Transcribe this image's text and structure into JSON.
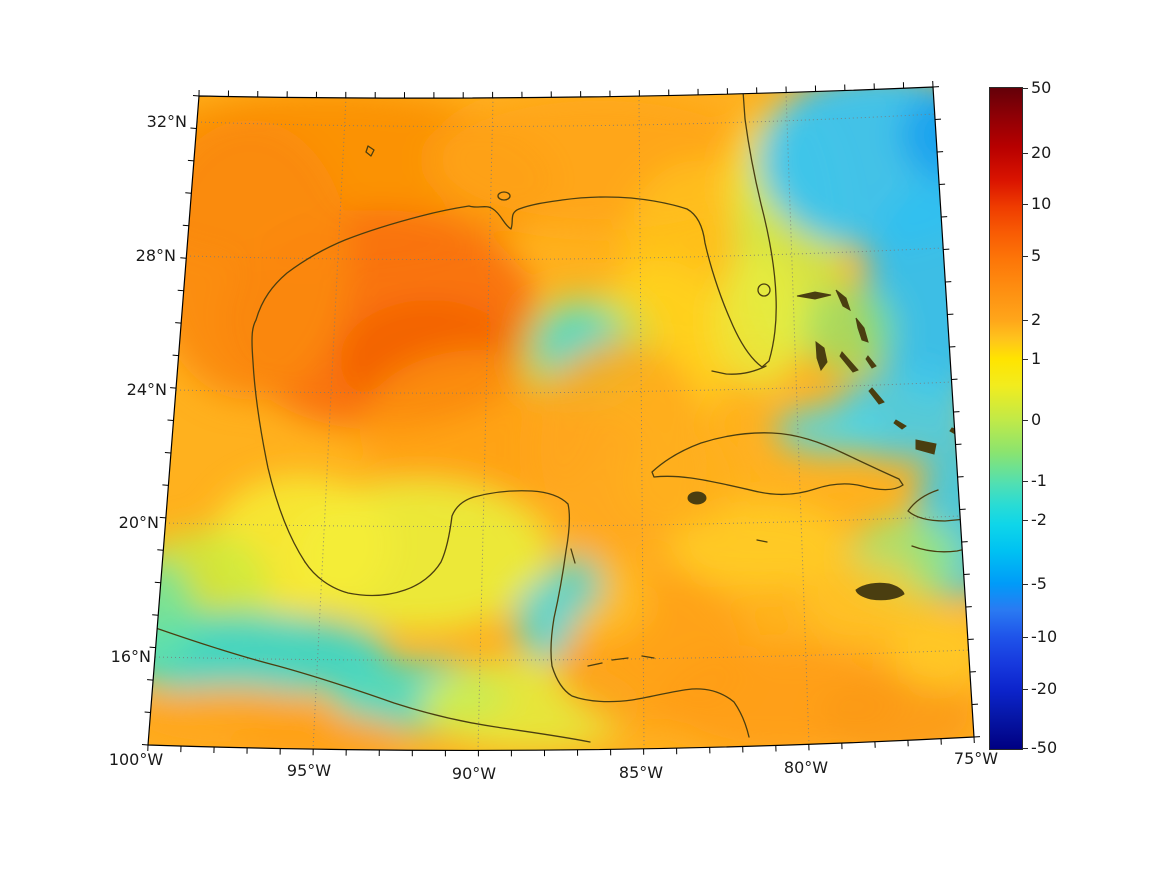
{
  "map": {
    "x_tick_labels": [
      "100°W",
      "95°W",
      "90°W",
      "85°W",
      "80°W",
      "75°W"
    ],
    "y_tick_labels": [
      "32°N",
      "28°N",
      "24°N",
      "20°N",
      "16°N"
    ]
  },
  "colorbar": {
    "tick_labels": [
      "50",
      "20",
      "10",
      "5",
      "2",
      "1",
      "0",
      "-1",
      "-2",
      "-5",
      "-10",
      "-20",
      "-50"
    ]
  },
  "chart_data": {
    "type": "heatmap",
    "title": "",
    "region": "Gulf of Mexico, Caribbean Sea and western North Atlantic",
    "projection": "conic-style map with slanted graticule",
    "x_axis": {
      "label": "longitude",
      "tick_values_deg_west": [
        100,
        95,
        90,
        85,
        80,
        75
      ],
      "minor_tick_step_deg": 1
    },
    "y_axis": {
      "label": "latitude",
      "tick_values_deg_north": [
        32,
        28,
        24,
        20,
        16
      ],
      "minor_tick_step_deg": 1
    },
    "grid": {
      "visible": true,
      "style": "dotted"
    },
    "colorbar": {
      "orientation": "vertical",
      "tick_values": [
        50,
        20,
        10,
        5,
        2,
        1,
        0,
        -1,
        -2,
        -5,
        -10,
        -20,
        -50
      ],
      "scale": "symmetric nonlinear (log-like)",
      "colors_top_to_bottom": [
        "#640008",
        "#b80000",
        "#ef3c00",
        "#fd7608",
        "#ffa51a",
        "#ffe400",
        "#c3ea46",
        "#4fdfb4",
        "#0fd6e9",
        "#009bf8",
        "#1f54ea",
        "#0c24cc",
        "#000082"
      ]
    },
    "coastline_color": "#4a3e10",
    "field_summary": [
      {
        "area": "Gulf of Mexico interior (96-88W, 21-28N)",
        "approx_value": "+5 to +10"
      },
      {
        "area": "northwest Gulf core (95-91W, 24-27N)",
        "approx_value": "+10"
      },
      {
        "area": "small patch central Gulf (~87.5W, 24.5N)",
        "approx_value": "0 to -1"
      },
      {
        "area": "Atlantic northeast of Bahamas (80-75W, 24-32N)",
        "approx_value": "-2 to -5"
      },
      {
        "area": "band east of Florida (79-78W)",
        "approx_value": "0 to +1"
      },
      {
        "area": "waters just north of Cuba",
        "approx_value": "-1 to -2"
      },
      {
        "area": "south of Cuba / Cayman",
        "approx_value": "+1 to +2"
      },
      {
        "area": "Bay of Campeche and Yucatan shelf",
        "approx_value": "+1 to +2"
      },
      {
        "area": "patch east of Belize (~87W, 17-19N)",
        "approx_value": "-1 to -2"
      },
      {
        "area": "northwest Caribbean (85-78W, 14-19N)",
        "approx_value": "+2 to +5"
      },
      {
        "area": "Pacific band off southern Mexico (99-92W, 14-16N)",
        "approx_value": "-1 to -2"
      },
      {
        "area": "Pacific far southwest corner (100-97W, 14N)",
        "approx_value": "+2 to +5"
      },
      {
        "area": "near Hispaniola at right edge",
        "approx_value": "-1 to -2"
      }
    ]
  }
}
